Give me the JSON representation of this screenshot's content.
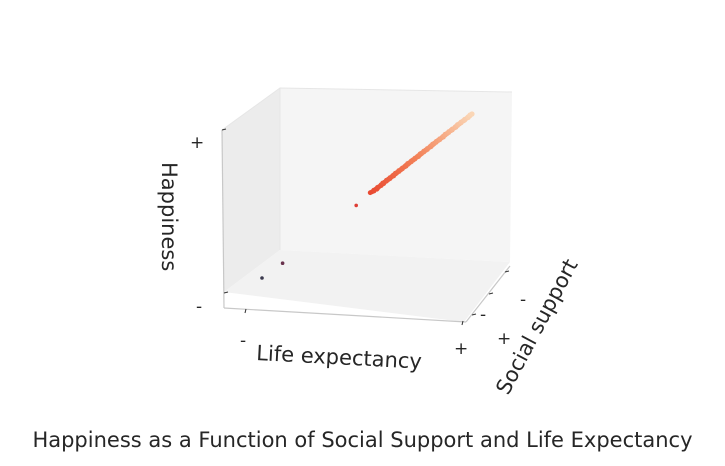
{
  "chart_data": {
    "type": "scatter",
    "projection": "3d",
    "title": "Happiness as a Function of Social Support and Life Expectancy",
    "xlabel": "Life expectancy",
    "ylabel": "Social support",
    "zlabel": "Happiness",
    "x_ticks": [
      "-",
      "+"
    ],
    "y_ticks": [
      "-",
      "-",
      "+"
    ],
    "z_ticks": [
      "+",
      "-"
    ],
    "grid": false,
    "colormap": [
      "#3b3a4e",
      "#c0234b",
      "#e8452e",
      "#f3845a",
      "#fad6b6"
    ],
    "points": [
      {
        "x": 0.0,
        "y": 0.0,
        "z": 0.0
      },
      {
        "x": 0.1,
        "y": 0.1,
        "z": 0.06
      },
      {
        "x": 0.45,
        "y": 0.45,
        "z": 0.42
      },
      {
        "x": 0.55,
        "y": 0.54,
        "z": 0.53
      },
      {
        "x": 0.58,
        "y": 0.58,
        "z": 0.57
      },
      {
        "x": 0.6,
        "y": 0.61,
        "z": 0.6
      },
      {
        "x": 0.62,
        "y": 0.63,
        "z": 0.62
      },
      {
        "x": 0.64,
        "y": 0.64,
        "z": 0.64
      },
      {
        "x": 0.66,
        "y": 0.66,
        "z": 0.66
      },
      {
        "x": 0.68,
        "y": 0.68,
        "z": 0.68
      },
      {
        "x": 0.7,
        "y": 0.7,
        "z": 0.7
      },
      {
        "x": 0.72,
        "y": 0.72,
        "z": 0.72
      },
      {
        "x": 0.74,
        "y": 0.74,
        "z": 0.74
      },
      {
        "x": 0.76,
        "y": 0.76,
        "z": 0.76
      },
      {
        "x": 0.78,
        "y": 0.78,
        "z": 0.78
      },
      {
        "x": 0.8,
        "y": 0.8,
        "z": 0.8
      },
      {
        "x": 0.82,
        "y": 0.82,
        "z": 0.82
      },
      {
        "x": 0.84,
        "y": 0.84,
        "z": 0.84
      },
      {
        "x": 0.86,
        "y": 0.86,
        "z": 0.86
      },
      {
        "x": 0.88,
        "y": 0.88,
        "z": 0.88
      },
      {
        "x": 0.9,
        "y": 0.9,
        "z": 0.9
      },
      {
        "x": 0.92,
        "y": 0.92,
        "z": 0.92
      },
      {
        "x": 0.94,
        "y": 0.94,
        "z": 0.94
      },
      {
        "x": 0.96,
        "y": 0.96,
        "z": 0.96
      },
      {
        "x": 0.98,
        "y": 0.98,
        "z": 0.98
      },
      {
        "x": 1.0,
        "y": 1.0,
        "z": 1.0
      }
    ]
  }
}
